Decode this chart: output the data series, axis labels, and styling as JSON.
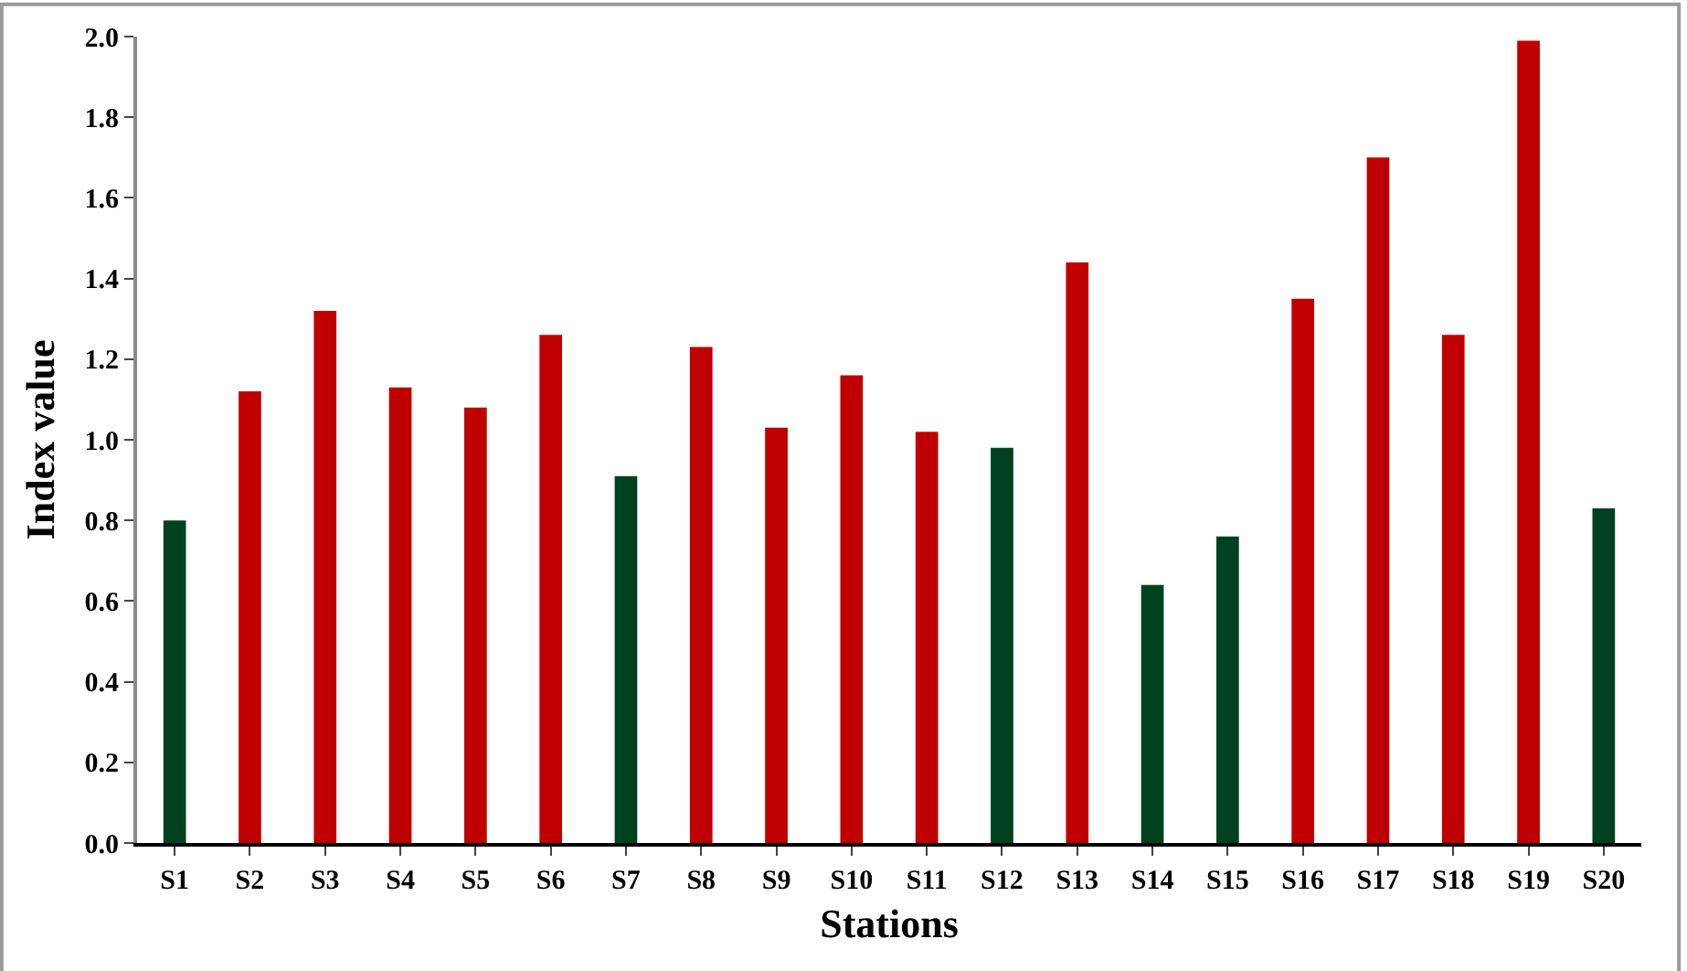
{
  "chart_data": {
    "type": "bar",
    "xlabel": "Stations",
    "ylabel": "Index value",
    "categories": [
      "S1",
      "S2",
      "S3",
      "S4",
      "S5",
      "S6",
      "S7",
      "S8",
      "S9",
      "S10",
      "S11",
      "S12",
      "S13",
      "S14",
      "S15",
      "S16",
      "S17",
      "S18",
      "S19",
      "S20"
    ],
    "values": [
      0.8,
      1.12,
      1.32,
      1.13,
      1.08,
      1.26,
      0.91,
      1.23,
      1.03,
      1.16,
      1.02,
      0.98,
      1.44,
      0.64,
      0.76,
      1.35,
      1.7,
      1.26,
      1.99,
      0.83
    ],
    "colors": [
      "#004220",
      "#c00000",
      "#c00000",
      "#c00000",
      "#c00000",
      "#c00000",
      "#004220",
      "#c00000",
      "#c00000",
      "#c00000",
      "#c00000",
      "#004220",
      "#c00000",
      "#004220",
      "#004220",
      "#c00000",
      "#c00000",
      "#c00000",
      "#c00000",
      "#004220"
    ],
    "ylim": [
      0,
      2.0
    ],
    "yticks": [
      {
        "value": 0,
        "label": "0.0"
      },
      {
        "value": 0.2,
        "label": "0.2"
      },
      {
        "value": 0.4,
        "label": "0.4"
      },
      {
        "value": 0.6,
        "label": "0.6"
      },
      {
        "value": 0.8,
        "label": "0.8"
      },
      {
        "value": 1.0,
        "label": "1.0"
      },
      {
        "value": 1.2,
        "label": "1.2"
      },
      {
        "value": 1.4,
        "label": "1.4"
      },
      {
        "value": 1.6,
        "label": "1.6"
      },
      {
        "value": 1.8,
        "label": "1.8"
      },
      {
        "value": 2.0,
        "label": "2.0"
      }
    ]
  }
}
